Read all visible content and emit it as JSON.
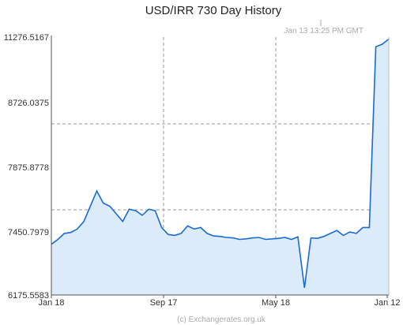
{
  "chart_data": {
    "type": "area",
    "title": "USD/IRR  730 Day History",
    "timestamp": "Jan 13  13:25 PM GMT",
    "credit": "(c) Exchangerates.org.uk",
    "y_ticks": [
      "11276.5167",
      "8726.0375",
      "7875.8778",
      "7450.7979",
      "6175.5583"
    ],
    "x_ticks": [
      "Jan 18",
      "Sep 17",
      "May 18",
      "Jan 12"
    ],
    "grid": true,
    "series": [
      {
        "color": "#1a6bd1",
        "fill": "#dcebf9",
        "x": [
          "Jan 18",
          "Feb 1",
          "Feb 15",
          "Mar 1",
          "Mar 15",
          "Apr 1",
          "Apr 15",
          "May 1",
          "May 15",
          "Jun 1",
          "Jun 15",
          "Jul 1",
          "Jul 15",
          "Aug 1",
          "Aug 15",
          "Sep 1",
          "Sep 17",
          "Oct 1",
          "Oct 15",
          "Nov 1",
          "Nov 15",
          "Dec 1",
          "Dec 15",
          "Jan 1",
          "Jan 15",
          "Feb 1",
          "Feb 15",
          "Mar 1",
          "Mar 15",
          "Apr 1",
          "Apr 15",
          "May 1",
          "May 18",
          "Jun 1",
          "Jun 15",
          "Jul 1",
          "Jul 15",
          "Aug 1",
          "Aug 15",
          "Aug 20",
          "Aug 25",
          "Sep 1",
          "Sep 15",
          "Oct 1",
          "Oct 15",
          "Nov 1",
          "Nov 15",
          "Dec 1",
          "Dec 15",
          "Dec 25",
          "Dec 28",
          "Jan 1",
          "Jan 12"
        ],
        "values": [
          7200,
          7300,
          7420,
          7440,
          7470,
          7520,
          7620,
          7720,
          7640,
          7620,
          7570,
          7520,
          7600,
          7590,
          7560,
          7600,
          7590,
          7480,
          7400,
          7380,
          7420,
          7490,
          7470,
          7480,
          7420,
          7370,
          7360,
          7340,
          7330,
          7300,
          7310,
          7330,
          7340,
          7300,
          7310,
          7320,
          7340,
          7300,
          7350,
          6320,
          7330,
          7320,
          7360,
          7420,
          7460,
          7380,
          7450,
          7420,
          7480,
          7480,
          10900,
          11000,
          11200
        ]
      }
    ]
  }
}
